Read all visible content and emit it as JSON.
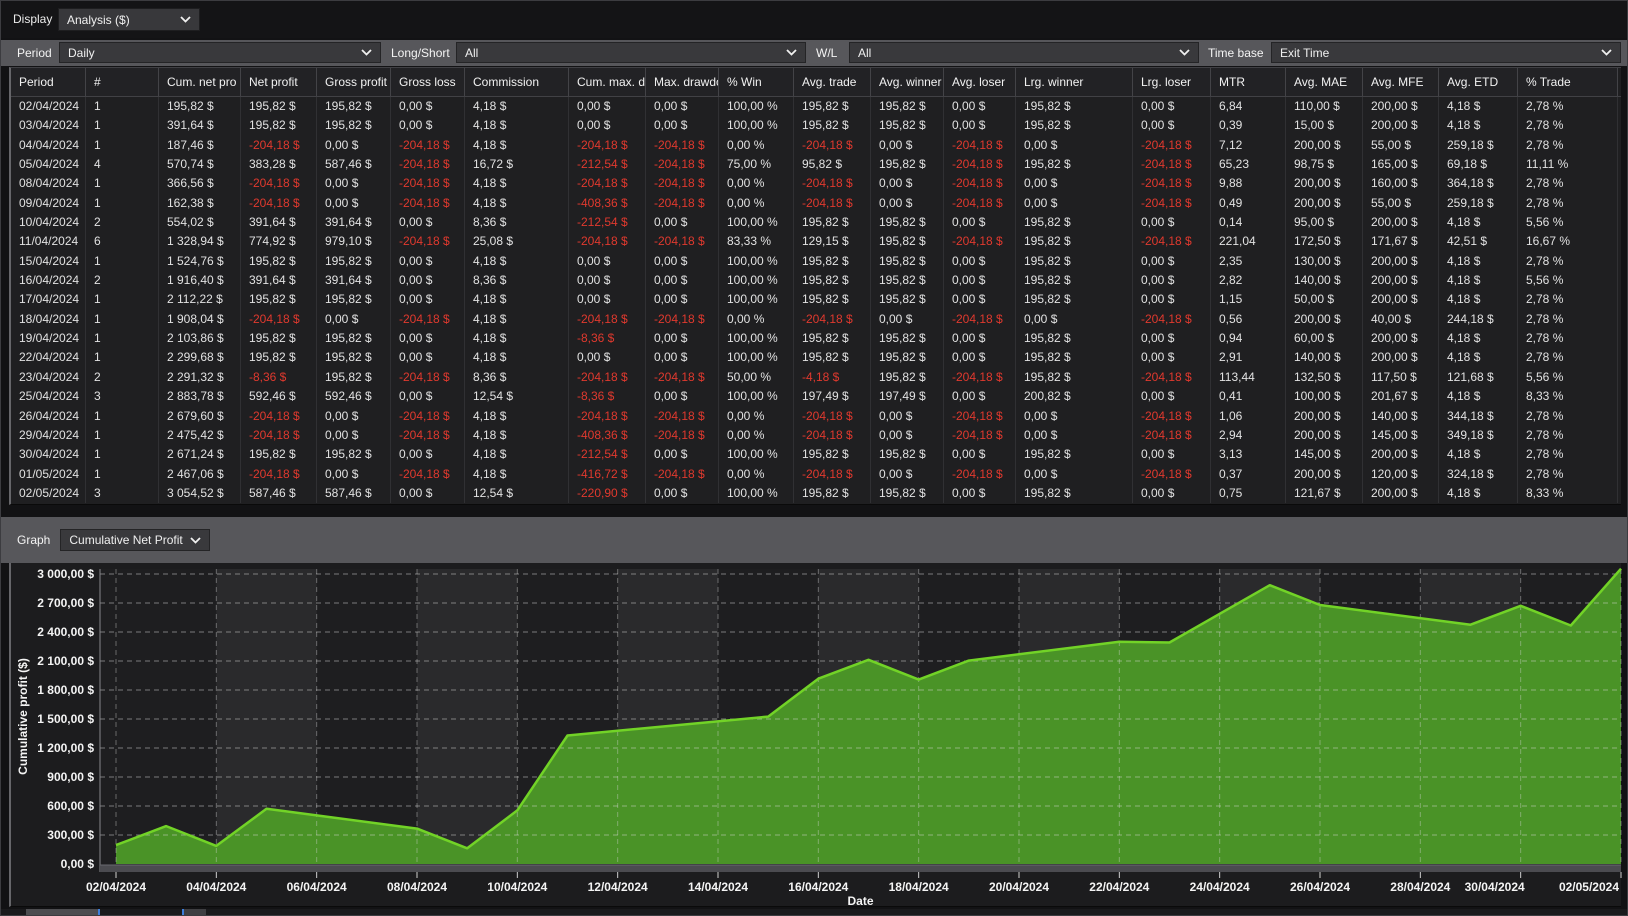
{
  "display_bar": {
    "label": "Display",
    "value": "Analysis ($)"
  },
  "filter_bar": {
    "period_label": "Period",
    "period_value": "Daily",
    "longshort_label": "Long/Short",
    "longshort_value": "All",
    "wl_label": "W/L",
    "wl_value": "All",
    "timebase_label": "Time base",
    "timebase_value": "Exit Time"
  },
  "graph_bar": {
    "label": "Graph",
    "value": "Cumulative Net Profit"
  },
  "table": {
    "columns": [
      "Period",
      "#",
      "Cum. net pro",
      "Net profit",
      "Gross profit",
      "Gross loss",
      "Commission",
      "Cum. max. d",
      "Max. drawdo",
      "% Win",
      "Avg. trade",
      "Avg. winner",
      "Avg. loser",
      "Lrg. winner",
      "Lrg. loser",
      "MTR",
      "Avg. MAE",
      "Avg. MFE",
      "Avg. ETD",
      "% Trade"
    ],
    "rows": [
      [
        "02/04/2024",
        "1",
        "195,82 $",
        "195,82 $",
        "195,82 $",
        "0,00 $",
        "4,18 $",
        "0,00 $",
        "0,00 $",
        "100,00 %",
        "195,82 $",
        "195,82 $",
        "0,00 $",
        "195,82 $",
        "0,00 $",
        "6,84",
        "110,00 $",
        "200,00 $",
        "4,18 $",
        "2,78 %"
      ],
      [
        "03/04/2024",
        "1",
        "391,64 $",
        "195,82 $",
        "195,82 $",
        "0,00 $",
        "4,18 $",
        "0,00 $",
        "0,00 $",
        "100,00 %",
        "195,82 $",
        "195,82 $",
        "0,00 $",
        "195,82 $",
        "0,00 $",
        "0,39",
        "15,00 $",
        "200,00 $",
        "4,18 $",
        "2,78 %"
      ],
      [
        "04/04/2024",
        "1",
        "187,46 $",
        "-204,18 $",
        "0,00 $",
        "-204,18 $",
        "4,18 $",
        "-204,18 $",
        "-204,18 $",
        "0,00 %",
        "-204,18 $",
        "0,00 $",
        "-204,18 $",
        "0,00 $",
        "-204,18 $",
        "7,12",
        "200,00 $",
        "55,00 $",
        "259,18 $",
        "2,78 %"
      ],
      [
        "05/04/2024",
        "4",
        "570,74 $",
        "383,28 $",
        "587,46 $",
        "-204,18 $",
        "16,72 $",
        "-212,54 $",
        "-204,18 $",
        "75,00 %",
        "95,82 $",
        "195,82 $",
        "-204,18 $",
        "195,82 $",
        "-204,18 $",
        "65,23",
        "98,75 $",
        "165,00 $",
        "69,18 $",
        "11,11 %"
      ],
      [
        "08/04/2024",
        "1",
        "366,56 $",
        "-204,18 $",
        "0,00 $",
        "-204,18 $",
        "4,18 $",
        "-204,18 $",
        "-204,18 $",
        "0,00 %",
        "-204,18 $",
        "0,00 $",
        "-204,18 $",
        "0,00 $",
        "-204,18 $",
        "9,88",
        "200,00 $",
        "160,00 $",
        "364,18 $",
        "2,78 %"
      ],
      [
        "09/04/2024",
        "1",
        "162,38 $",
        "-204,18 $",
        "0,00 $",
        "-204,18 $",
        "4,18 $",
        "-408,36 $",
        "-204,18 $",
        "0,00 %",
        "-204,18 $",
        "0,00 $",
        "-204,18 $",
        "0,00 $",
        "-204,18 $",
        "0,49",
        "200,00 $",
        "55,00 $",
        "259,18 $",
        "2,78 %"
      ],
      [
        "10/04/2024",
        "2",
        "554,02 $",
        "391,64 $",
        "391,64 $",
        "0,00 $",
        "8,36 $",
        "-212,54 $",
        "0,00 $",
        "100,00 %",
        "195,82 $",
        "195,82 $",
        "0,00 $",
        "195,82 $",
        "0,00 $",
        "0,14",
        "95,00 $",
        "200,00 $",
        "4,18 $",
        "5,56 %"
      ],
      [
        "11/04/2024",
        "6",
        "1 328,94 $",
        "774,92 $",
        "979,10 $",
        "-204,18 $",
        "25,08 $",
        "-204,18 $",
        "-204,18 $",
        "83,33 %",
        "129,15 $",
        "195,82 $",
        "-204,18 $",
        "195,82 $",
        "-204,18 $",
        "221,04",
        "172,50 $",
        "171,67 $",
        "42,51 $",
        "16,67 %"
      ],
      [
        "15/04/2024",
        "1",
        "1 524,76 $",
        "195,82 $",
        "195,82 $",
        "0,00 $",
        "4,18 $",
        "0,00 $",
        "0,00 $",
        "100,00 %",
        "195,82 $",
        "195,82 $",
        "0,00 $",
        "195,82 $",
        "0,00 $",
        "2,35",
        "130,00 $",
        "200,00 $",
        "4,18 $",
        "2,78 %"
      ],
      [
        "16/04/2024",
        "2",
        "1 916,40 $",
        "391,64 $",
        "391,64 $",
        "0,00 $",
        "8,36 $",
        "0,00 $",
        "0,00 $",
        "100,00 %",
        "195,82 $",
        "195,82 $",
        "0,00 $",
        "195,82 $",
        "0,00 $",
        "2,82",
        "140,00 $",
        "200,00 $",
        "4,18 $",
        "5,56 %"
      ],
      [
        "17/04/2024",
        "1",
        "2 112,22 $",
        "195,82 $",
        "195,82 $",
        "0,00 $",
        "4,18 $",
        "0,00 $",
        "0,00 $",
        "100,00 %",
        "195,82 $",
        "195,82 $",
        "0,00 $",
        "195,82 $",
        "0,00 $",
        "1,15",
        "50,00 $",
        "200,00 $",
        "4,18 $",
        "2,78 %"
      ],
      [
        "18/04/2024",
        "1",
        "1 908,04 $",
        "-204,18 $",
        "0,00 $",
        "-204,18 $",
        "4,18 $",
        "-204,18 $",
        "-204,18 $",
        "0,00 %",
        "-204,18 $",
        "0,00 $",
        "-204,18 $",
        "0,00 $",
        "-204,18 $",
        "0,56",
        "200,00 $",
        "40,00 $",
        "244,18 $",
        "2,78 %"
      ],
      [
        "19/04/2024",
        "1",
        "2 103,86 $",
        "195,82 $",
        "195,82 $",
        "0,00 $",
        "4,18 $",
        "-8,36 $",
        "0,00 $",
        "100,00 %",
        "195,82 $",
        "195,82 $",
        "0,00 $",
        "195,82 $",
        "0,00 $",
        "0,94",
        "60,00 $",
        "200,00 $",
        "4,18 $",
        "2,78 %"
      ],
      [
        "22/04/2024",
        "1",
        "2 299,68 $",
        "195,82 $",
        "195,82 $",
        "0,00 $",
        "4,18 $",
        "0,00 $",
        "0,00 $",
        "100,00 %",
        "195,82 $",
        "195,82 $",
        "0,00 $",
        "195,82 $",
        "0,00 $",
        "2,91",
        "140,00 $",
        "200,00 $",
        "4,18 $",
        "2,78 %"
      ],
      [
        "23/04/2024",
        "2",
        "2 291,32 $",
        "-8,36 $",
        "195,82 $",
        "-204,18 $",
        "8,36 $",
        "-204,18 $",
        "-204,18 $",
        "50,00 %",
        "-4,18 $",
        "195,82 $",
        "-204,18 $",
        "195,82 $",
        "-204,18 $",
        "113,44",
        "132,50 $",
        "117,50 $",
        "121,68 $",
        "5,56 %"
      ],
      [
        "25/04/2024",
        "3",
        "2 883,78 $",
        "592,46 $",
        "592,46 $",
        "0,00 $",
        "12,54 $",
        "-8,36 $",
        "0,00 $",
        "100,00 %",
        "197,49 $",
        "197,49 $",
        "0,00 $",
        "200,82 $",
        "0,00 $",
        "0,41",
        "100,00 $",
        "201,67 $",
        "4,18 $",
        "8,33 %"
      ],
      [
        "26/04/2024",
        "1",
        "2 679,60 $",
        "-204,18 $",
        "0,00 $",
        "-204,18 $",
        "4,18 $",
        "-204,18 $",
        "-204,18 $",
        "0,00 %",
        "-204,18 $",
        "0,00 $",
        "-204,18 $",
        "0,00 $",
        "-204,18 $",
        "1,06",
        "200,00 $",
        "140,00 $",
        "344,18 $",
        "2,78 %"
      ],
      [
        "29/04/2024",
        "1",
        "2 475,42 $",
        "-204,18 $",
        "0,00 $",
        "-204,18 $",
        "4,18 $",
        "-408,36 $",
        "-204,18 $",
        "0,00 %",
        "-204,18 $",
        "0,00 $",
        "-204,18 $",
        "0,00 $",
        "-204,18 $",
        "2,94",
        "200,00 $",
        "145,00 $",
        "349,18 $",
        "2,78 %"
      ],
      [
        "30/04/2024",
        "1",
        "2 671,24 $",
        "195,82 $",
        "195,82 $",
        "0,00 $",
        "4,18 $",
        "-212,54 $",
        "0,00 $",
        "100,00 %",
        "195,82 $",
        "195,82 $",
        "0,00 $",
        "195,82 $",
        "0,00 $",
        "3,13",
        "145,00 $",
        "200,00 $",
        "4,18 $",
        "2,78 %"
      ],
      [
        "01/05/2024",
        "1",
        "2 467,06 $",
        "-204,18 $",
        "0,00 $",
        "-204,18 $",
        "4,18 $",
        "-416,72 $",
        "-204,18 $",
        "0,00 %",
        "-204,18 $",
        "0,00 $",
        "-204,18 $",
        "0,00 $",
        "-204,18 $",
        "0,37",
        "200,00 $",
        "120,00 $",
        "324,18 $",
        "2,78 %"
      ],
      [
        "02/05/2024",
        "3",
        "3 054,52 $",
        "587,46 $",
        "587,46 $",
        "0,00 $",
        "12,54 $",
        "-220,90 $",
        "0,00 $",
        "100,00 %",
        "195,82 $",
        "195,82 $",
        "0,00 $",
        "195,82 $",
        "0,00 $",
        "0,75",
        "121,67 $",
        "200,00 $",
        "4,18 $",
        "8,33 %"
      ]
    ]
  },
  "chart_data": {
    "type": "area",
    "title": "Cumulative Net Profit",
    "xlabel": "Date",
    "ylabel": "Cumulative profit ($)",
    "ylim": [
      0,
      3000
    ],
    "y_tick_step": 300,
    "y_tick_labels": [
      "0,00 $",
      "300,00 $",
      "600,00 $",
      "900,00 $",
      "1 200,00 $",
      "1 500,00 $",
      "1 800,00 $",
      "2 100,00 $",
      "2 400,00 $",
      "2 700,00 $",
      "3 000,00 $"
    ],
    "x_tick_labels": [
      "02/04/2024",
      "04/04/2024",
      "06/04/2024",
      "08/04/2024",
      "10/04/2024",
      "12/04/2024",
      "14/04/2024",
      "16/04/2024",
      "18/04/2024",
      "20/04/2024",
      "22/04/2024",
      "24/04/2024",
      "26/04/2024",
      "28/04/2024",
      "30/04/2024",
      "02/05/2024"
    ],
    "dates": [
      "02/04/2024",
      "03/04/2024",
      "04/04/2024",
      "05/04/2024",
      "08/04/2024",
      "09/04/2024",
      "10/04/2024",
      "11/04/2024",
      "15/04/2024",
      "16/04/2024",
      "17/04/2024",
      "18/04/2024",
      "19/04/2024",
      "22/04/2024",
      "23/04/2024",
      "25/04/2024",
      "26/04/2024",
      "29/04/2024",
      "30/04/2024",
      "01/05/2024",
      "02/05/2024"
    ],
    "day_offsets": [
      0,
      1,
      2,
      3,
      6,
      7,
      8,
      9,
      13,
      14,
      15,
      16,
      17,
      20,
      21,
      23,
      24,
      27,
      28,
      29,
      30
    ],
    "values": [
      195.82,
      391.64,
      187.46,
      570.74,
      366.56,
      162.38,
      554.02,
      1328.94,
      1524.76,
      1916.4,
      2112.22,
      1908.04,
      2103.86,
      2299.68,
      2291.32,
      2883.78,
      2679.6,
      2475.42,
      2671.24,
      2467.06,
      3054.52
    ],
    "grid": "dashed",
    "colors": {
      "line": "#72d327",
      "fill": "#4a9327",
      "plot_bg": "#1e1e20",
      "band": "#2a2a2c",
      "gridline": "#d6d6d6",
      "axis_band": "#4b4b50",
      "negative_text": "#e0392e"
    }
  }
}
